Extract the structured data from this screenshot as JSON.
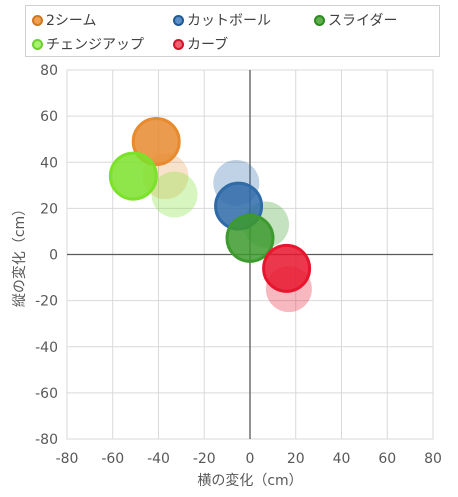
{
  "chart_data": {
    "type": "scatter",
    "xlabel": "横の変化（cm）",
    "ylabel": "縦の変化（cm）",
    "xlim": [
      -80,
      80
    ],
    "ylim": [
      -80,
      80
    ],
    "xticks": [
      "-80",
      "-60",
      "-40",
      "-20",
      "0",
      "20",
      "40",
      "60",
      "80"
    ],
    "yticks": [
      "80",
      "60",
      "40",
      "20",
      "0",
      "-20",
      "-40",
      "-60",
      "-80"
    ],
    "grid": true,
    "legend": "top",
    "series": [
      {
        "name": "2シーム",
        "color": "#E88A2E",
        "points": [
          {
            "x": -41,
            "y": 49,
            "alpha": 0.9
          },
          {
            "x": -37,
            "y": 34,
            "alpha": 0.25
          }
        ]
      },
      {
        "name": "カットボール",
        "color": "#2E6BA8",
        "points": [
          {
            "x": -6,
            "y": 31,
            "alpha": 0.3
          },
          {
            "x": -5,
            "y": 21,
            "alpha": 0.95
          }
        ]
      },
      {
        "name": "スライダー",
        "color": "#3D9A2E",
        "points": [
          {
            "x": 7,
            "y": 13,
            "alpha": 0.3
          },
          {
            "x": 0,
            "y": 7,
            "alpha": 0.95
          }
        ]
      },
      {
        "name": "チェンジアップ",
        "color": "#7BE22A",
        "points": [
          {
            "x": -33,
            "y": 26,
            "alpha": 0.3
          },
          {
            "x": -51,
            "y": 34,
            "alpha": 0.9
          }
        ]
      },
      {
        "name": "カーブ",
        "color": "#E8152E",
        "points": [
          {
            "x": 17,
            "y": -15,
            "alpha": 0.3
          },
          {
            "x": 16,
            "y": -6,
            "alpha": 0.95
          }
        ]
      }
    ]
  }
}
